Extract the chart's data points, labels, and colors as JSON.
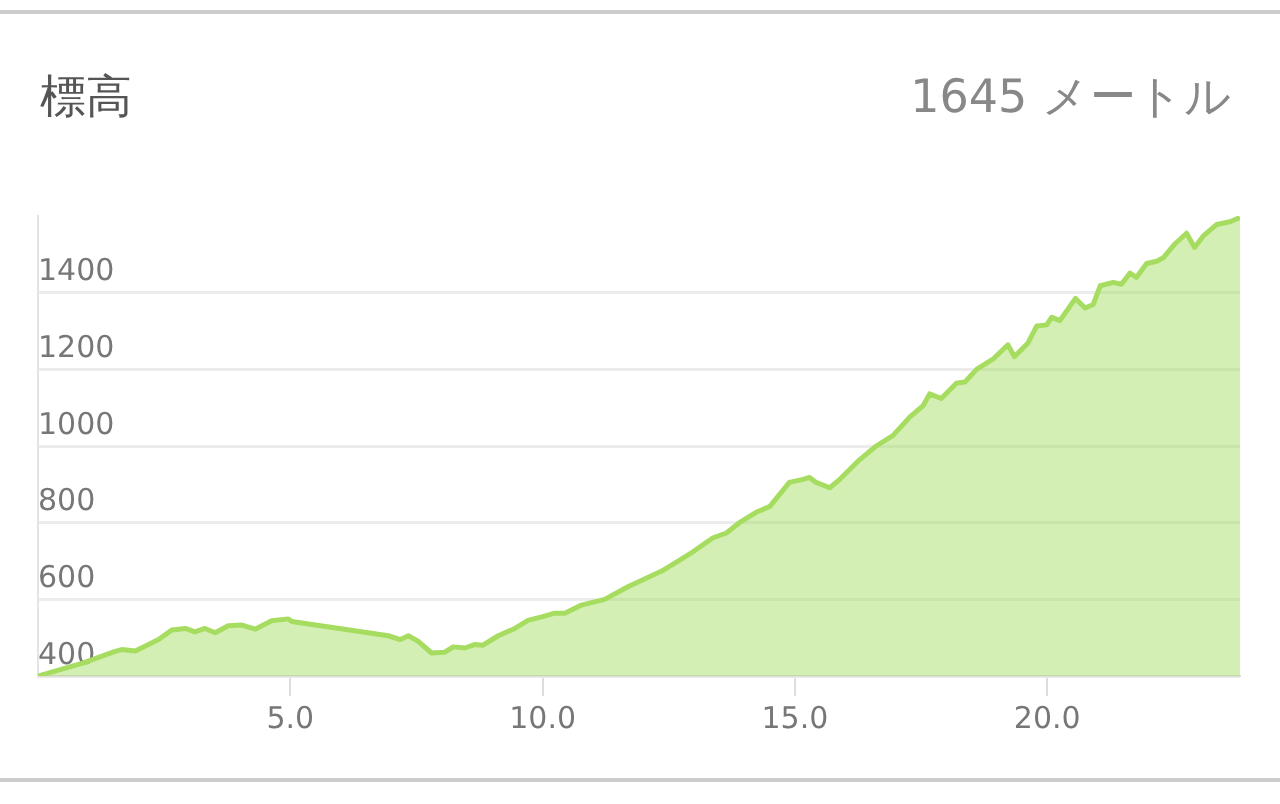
{
  "chart_data": {
    "type": "area",
    "title": "標高",
    "subtitle": "1645 メートル",
    "x": [
      0,
      0.87,
      1.53,
      1.66,
      1.93,
      2.19,
      2.39,
      2.65,
      2.92,
      3.11,
      3.31,
      3.51,
      3.77,
      4.04,
      4.3,
      4.63,
      4.96,
      5.03,
      6.94,
      7.18,
      7.34,
      7.53,
      7.8,
      8.06,
      8.23,
      8.46,
      8.65,
      8.81,
      9.12,
      9.45,
      9.71,
      10.0,
      10.24,
      10.44,
      10.77,
      11.23,
      11.69,
      12.35,
      12.58,
      12.98,
      13.37,
      13.64,
      13.9,
      14.23,
      14.5,
      14.89,
      15.16,
      15.29,
      15.42,
      15.69,
      15.89,
      16.28,
      16.61,
      16.94,
      17.28,
      17.54,
      17.67,
      17.9,
      18.2,
      18.37,
      18.6,
      18.93,
      19.22,
      19.35,
      19.62,
      19.79,
      19.99,
      20.09,
      20.25,
      20.56,
      20.75,
      20.91,
      21.05,
      21.31,
      21.47,
      21.64,
      21.77,
      21.97,
      22.17,
      22.3,
      22.53,
      22.76,
      22.92,
      23.1,
      23.36,
      23.62,
      23.82
    ],
    "series": [
      {
        "color": "#a6dd60",
        "values": [
          400,
          433,
          464,
          469,
          465,
          482,
          495,
          520,
          524,
          515,
          524,
          513,
          531,
          533,
          522,
          544,
          549,
          542,
          505,
          495,
          505,
          491,
          460,
          462,
          476,
          473,
          482,
          480,
          505,
          524,
          545,
          555,
          564,
          564,
          585,
          600,
          633,
          673,
          691,
          724,
          760,
          773,
          800,
          827,
          842,
          905,
          913,
          918,
          905,
          891,
          913,
          964,
          1000,
          1027,
          1076,
          1105,
          1136,
          1124,
          1164,
          1167,
          1200,
          1227,
          1264,
          1233,
          1269,
          1313,
          1316,
          1336,
          1327,
          1385,
          1360,
          1369,
          1418,
          1427,
          1422,
          1451,
          1440,
          1476,
          1482,
          1491,
          1527,
          1555,
          1518,
          1549,
          1578,
          1585,
          1596
        ]
      }
    ],
    "xlim": [
      0,
      23.82
    ],
    "xticks": [
      {
        "value": 5,
        "label": "5.0"
      },
      {
        "value": 10,
        "label": "10.0"
      },
      {
        "value": 15,
        "label": "15.0"
      },
      {
        "value": 20,
        "label": "20.0"
      }
    ],
    "ylim": [
      400,
      1600
    ],
    "yticks": [
      400,
      600,
      800,
      1000,
      1200,
      1400
    ],
    "grid": "y",
    "legend": false,
    "marker": "none",
    "line_style": "solid"
  }
}
